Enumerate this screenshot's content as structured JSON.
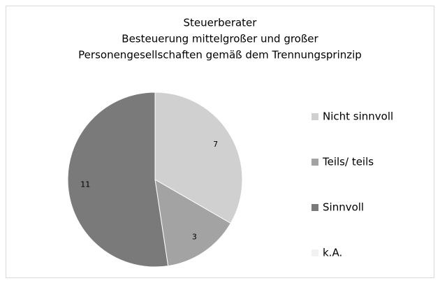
{
  "chart_data": {
    "type": "pie",
    "title": [
      "Steuerberater",
      "Besteuerung mittelgroßer und großer",
      "Personengesellschaften gemäß dem Trennungsprinzip"
    ],
    "categories": [
      "Nicht sinnvoll",
      "Teils/ teils",
      "Sinnvoll",
      "k.A."
    ],
    "values": [
      7,
      3,
      11,
      0
    ],
    "colors": [
      "#d0d0d0",
      "#a3a3a3",
      "#7a7a7a",
      "#f2f2f2"
    ],
    "legend": "right"
  }
}
